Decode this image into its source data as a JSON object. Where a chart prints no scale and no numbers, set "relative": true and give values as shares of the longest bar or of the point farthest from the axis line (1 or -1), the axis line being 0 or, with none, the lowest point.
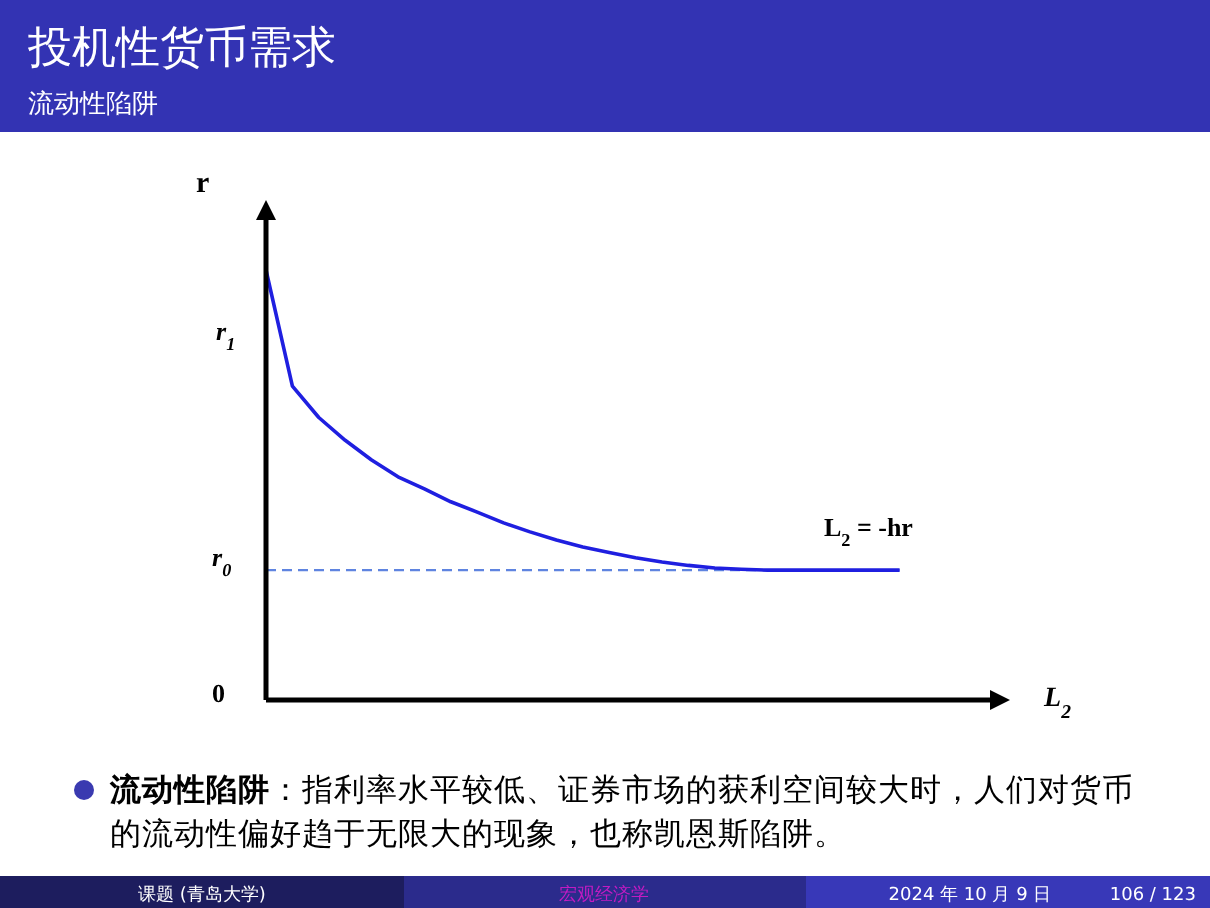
{
  "chart_data": {
    "type": "line",
    "title": "投机性货币需求",
    "subtitle": "流动性陷阱",
    "ylabel": "r",
    "relative": true,
    "color": "#1f1fe0",
    "categories": [
      null,
      null,
      null,
      null,
      null,
      null,
      null,
      null,
      null,
      null,
      null,
      null,
      null,
      null,
      null,
      null,
      null,
      null,
      null,
      null,
      null,
      null,
      null,
      null,
      null
    ],
    "values": [
      1.0,
      0.73,
      0.657,
      0.604,
      0.558,
      0.519,
      0.491,
      0.461,
      0.437,
      0.412,
      0.391,
      0.372,
      0.356,
      0.343,
      0.331,
      0.321,
      0.313,
      0.307,
      0.304,
      0.302,
      0.302,
      0.302,
      0.302,
      0.302,
      0.302
    ],
    "ref_lines": [
      {
        "axis": "y",
        "value": 0.302,
        "label": "r$_{0}$",
        "line_style": "dashed",
        "color": "#5f84e0"
      }
    ],
    "annotations": [
      "r$_{1}$",
      "L$_{2}$",
      "0",
      "L$_{2}$ = -hr",
      "**流动性陷阱**：指利率水平较低、证券市场的获利空间较大时，人们对货币的流动性偏好趋于无限大的现象，也称凯恩斯陷阱。",
      "课题 (青岛大学)",
      "宏观经济学",
      "2024 年 10 月 9 日",
      "106 / 123"
    ]
  }
}
